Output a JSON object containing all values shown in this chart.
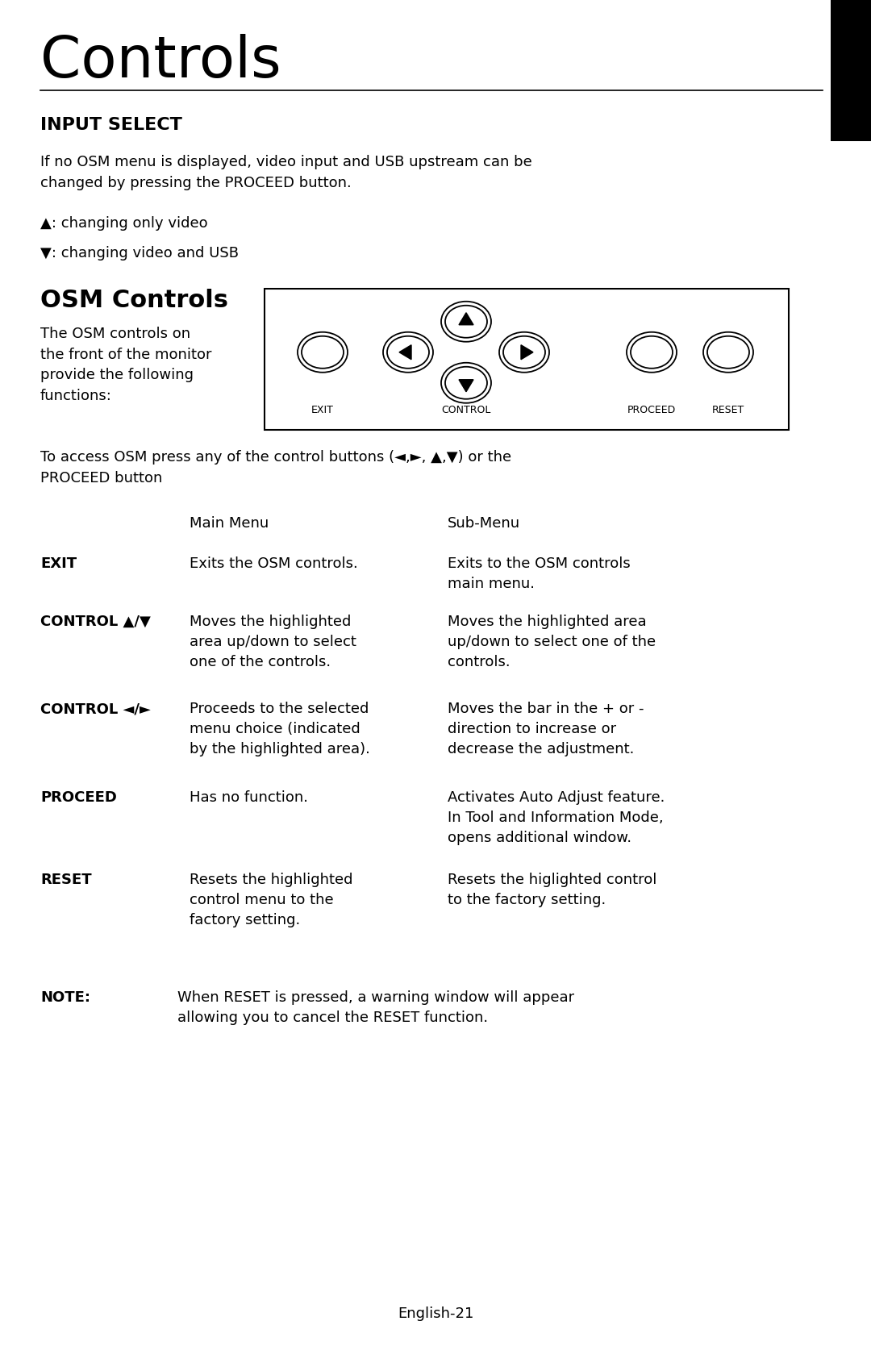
{
  "title": "Controls",
  "section1_heading": "INPUT SELECT",
  "section1_para": "If no OSM menu is displayed, video input and USB upstream can be\nchanged by pressing the PROCEED button.",
  "bullet1": "▲: changing only video",
  "bullet2": "▼: changing video and USB",
  "section2_heading": "OSM Controls",
  "section2_para1": "The OSM controls on\nthe front of the monitor\nprovide the following\nfunctions:",
  "section2_para2": "To access OSM press any of the control buttons (◄,►, ▲,▼) or the\nPROCEED button",
  "table_col2": "Main Menu",
  "table_col3": "Sub-Menu",
  "rows": [
    {
      "col1": "EXIT",
      "col2": "Exits the OSM controls.",
      "col3": "Exits to the OSM controls\nmain menu."
    },
    {
      "col1": "CONTROL ▲/▼",
      "col2": "Moves the highlighted\narea up/down to select\none of the controls.",
      "col3": "Moves the highlighted area\nup/down to select one of the\ncontrols."
    },
    {
      "col1": "CONTROL ◄/►",
      "col2": "Proceeds to the selected\nmenu choice (indicated\nby the highlighted area).",
      "col3": "Moves the bar in the + or -\ndirection to increase or\ndecrease the adjustment."
    },
    {
      "col1": "PROCEED",
      "col2": "Has no function.",
      "col3": "Activates Auto Adjust feature.\nIn Tool and Information Mode,\nopens additional window."
    },
    {
      "col1": "RESET",
      "col2": "Resets the highlighted\ncontrol menu to the\nfactory setting.",
      "col3": "Resets the higlighted control\nto the factory setting."
    }
  ],
  "note_label": "NOTE:",
  "note_text": "When RESET is pressed, a warning window will appear\nallowing you to cancel the RESET function.",
  "footer": "English-21",
  "bg_color": "#ffffff",
  "text_color": "#000000"
}
